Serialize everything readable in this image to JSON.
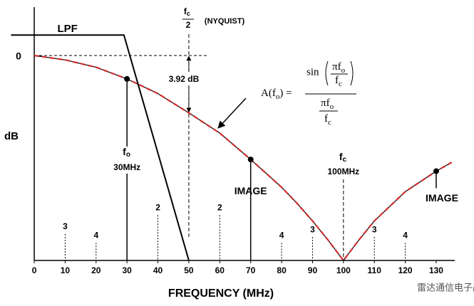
{
  "chart_data": {
    "type": "line",
    "xlabel": "FREQUENCY (MHz)",
    "ylabel": "dB",
    "xlim": [
      -7.5,
      136
    ],
    "ylim": [
      -14,
      3
    ],
    "xticks": [
      0,
      10,
      20,
      30,
      40,
      50,
      60,
      70,
      80,
      90,
      100,
      110,
      120,
      130
    ],
    "yticks": [
      0
    ],
    "grid": false,
    "series": [
      {
        "name": "LPF",
        "color": "#000000",
        "x": [
          -7.5,
          29,
          50
        ],
        "values": [
          1.4,
          1.4,
          -14
        ]
      },
      {
        "color": "#d42a2a",
        "x": [
          0,
          10,
          20,
          30,
          40,
          50,
          60,
          70,
          80,
          85,
          90,
          95,
          100,
          105,
          110,
          115,
          120,
          125,
          130,
          135
        ],
        "values": [
          0,
          -0.3,
          -0.8,
          -1.6,
          -2.6,
          -3.92,
          -5.3,
          -7.1,
          -9,
          -10.1,
          -11.3,
          -12.6,
          -14,
          -12.6,
          -11.3,
          -10.3,
          -9.3,
          -8.6,
          -7.9,
          -7.3
        ]
      }
    ],
    "highlighted_x": [
      30,
      70,
      130
    ],
    "spurs": [
      {
        "x": 10,
        "value": -12.2,
        "label": "3"
      },
      {
        "x": 20,
        "value": -12.8,
        "label": "4"
      },
      {
        "x": 40,
        "value": -10.9,
        "label": "2"
      },
      {
        "x": 60,
        "value": -10.9,
        "label": "2"
      },
      {
        "x": 80,
        "value": -12.8,
        "label": "4"
      },
      {
        "x": 90,
        "value": -12.4,
        "label": "3"
      },
      {
        "x": 110,
        "value": -12.4,
        "label": "3"
      },
      {
        "x": 120,
        "value": -12.8,
        "label": "4"
      }
    ],
    "nyquist": {
      "x": 50,
      "f": "f",
      "sub": "c",
      "den": "2",
      "label": "(NYQUIST)"
    },
    "attenuation": {
      "value": -3.92,
      "label": "3.92 dB"
    },
    "fo": {
      "x": 30,
      "f": "f",
      "sub": "o",
      "label": "30MHz"
    },
    "fc": {
      "x": 100,
      "f": "f",
      "sub": "c",
      "label": "100MHz"
    },
    "images": [
      {
        "x": 70,
        "label": "IMAGE"
      },
      {
        "x": 130,
        "label": "IMAGE"
      }
    ],
    "formula": {
      "lhs": "A(f",
      "lhs_sub": "o",
      "lhs_end": ") =",
      "sin": "sin",
      "num": "πf",
      "num_sub": "o",
      "den": "f",
      "den_sub": "c"
    },
    "watermark": "雷达通信电子战"
  }
}
